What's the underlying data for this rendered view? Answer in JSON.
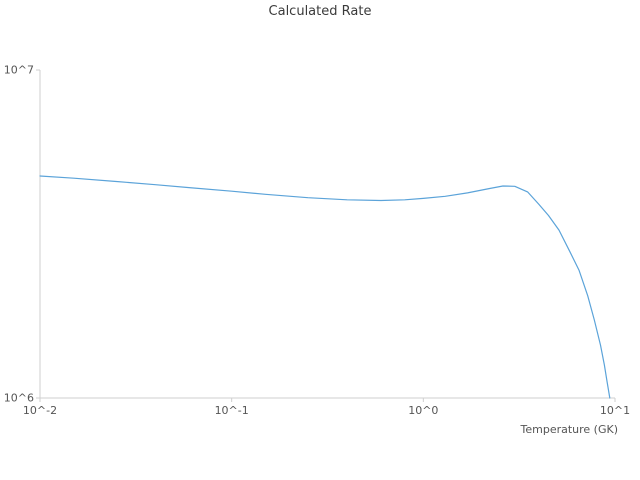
{
  "chart": {
    "title": "Calculated Rate",
    "xlabel": "Temperature (GK)",
    "x_ticks": [
      {
        "value": 0.01,
        "label": "10^-2"
      },
      {
        "value": 0.1,
        "label": "10^-1"
      },
      {
        "value": 1.0,
        "label": "10^0"
      },
      {
        "value": 10.0,
        "label": "10^1"
      }
    ],
    "y_ticks": [
      {
        "value": 10000000,
        "label": "10^7"
      },
      {
        "value": 1000000,
        "label": "10^6"
      }
    ]
  },
  "chart_data": {
    "type": "line",
    "title": "Calculated Rate",
    "xlabel": "Temperature (GK)",
    "ylabel": "",
    "x_scale": "log",
    "y_scale": "log",
    "xlim": [
      0.01,
      10
    ],
    "ylim": [
      1000000,
      10000000
    ],
    "grid": false,
    "legend": "none",
    "line_color": "#5ba3d9",
    "axis_color": "#cfcfcf",
    "series": [
      {
        "name": "Calculated Rate",
        "x": [
          0.01,
          0.015,
          0.025,
          0.04,
          0.06,
          0.1,
          0.15,
          0.25,
          0.4,
          0.6,
          0.8,
          1.0,
          1.3,
          1.7,
          2.2,
          2.6,
          3.0,
          3.5,
          4.0,
          4.5,
          5.1,
          5.8,
          6.5,
          7.2,
          7.8,
          8.4,
          8.8,
          9.1,
          9.4
        ],
        "y": [
          4750000,
          4680000,
          4570000,
          4470000,
          4380000,
          4270000,
          4180000,
          4080000,
          4020000,
          4000000,
          4020000,
          4060000,
          4120000,
          4220000,
          4350000,
          4430000,
          4420000,
          4250000,
          3900000,
          3600000,
          3250000,
          2800000,
          2450000,
          2050000,
          1730000,
          1450000,
          1260000,
          1120000,
          1000000
        ]
      }
    ]
  }
}
